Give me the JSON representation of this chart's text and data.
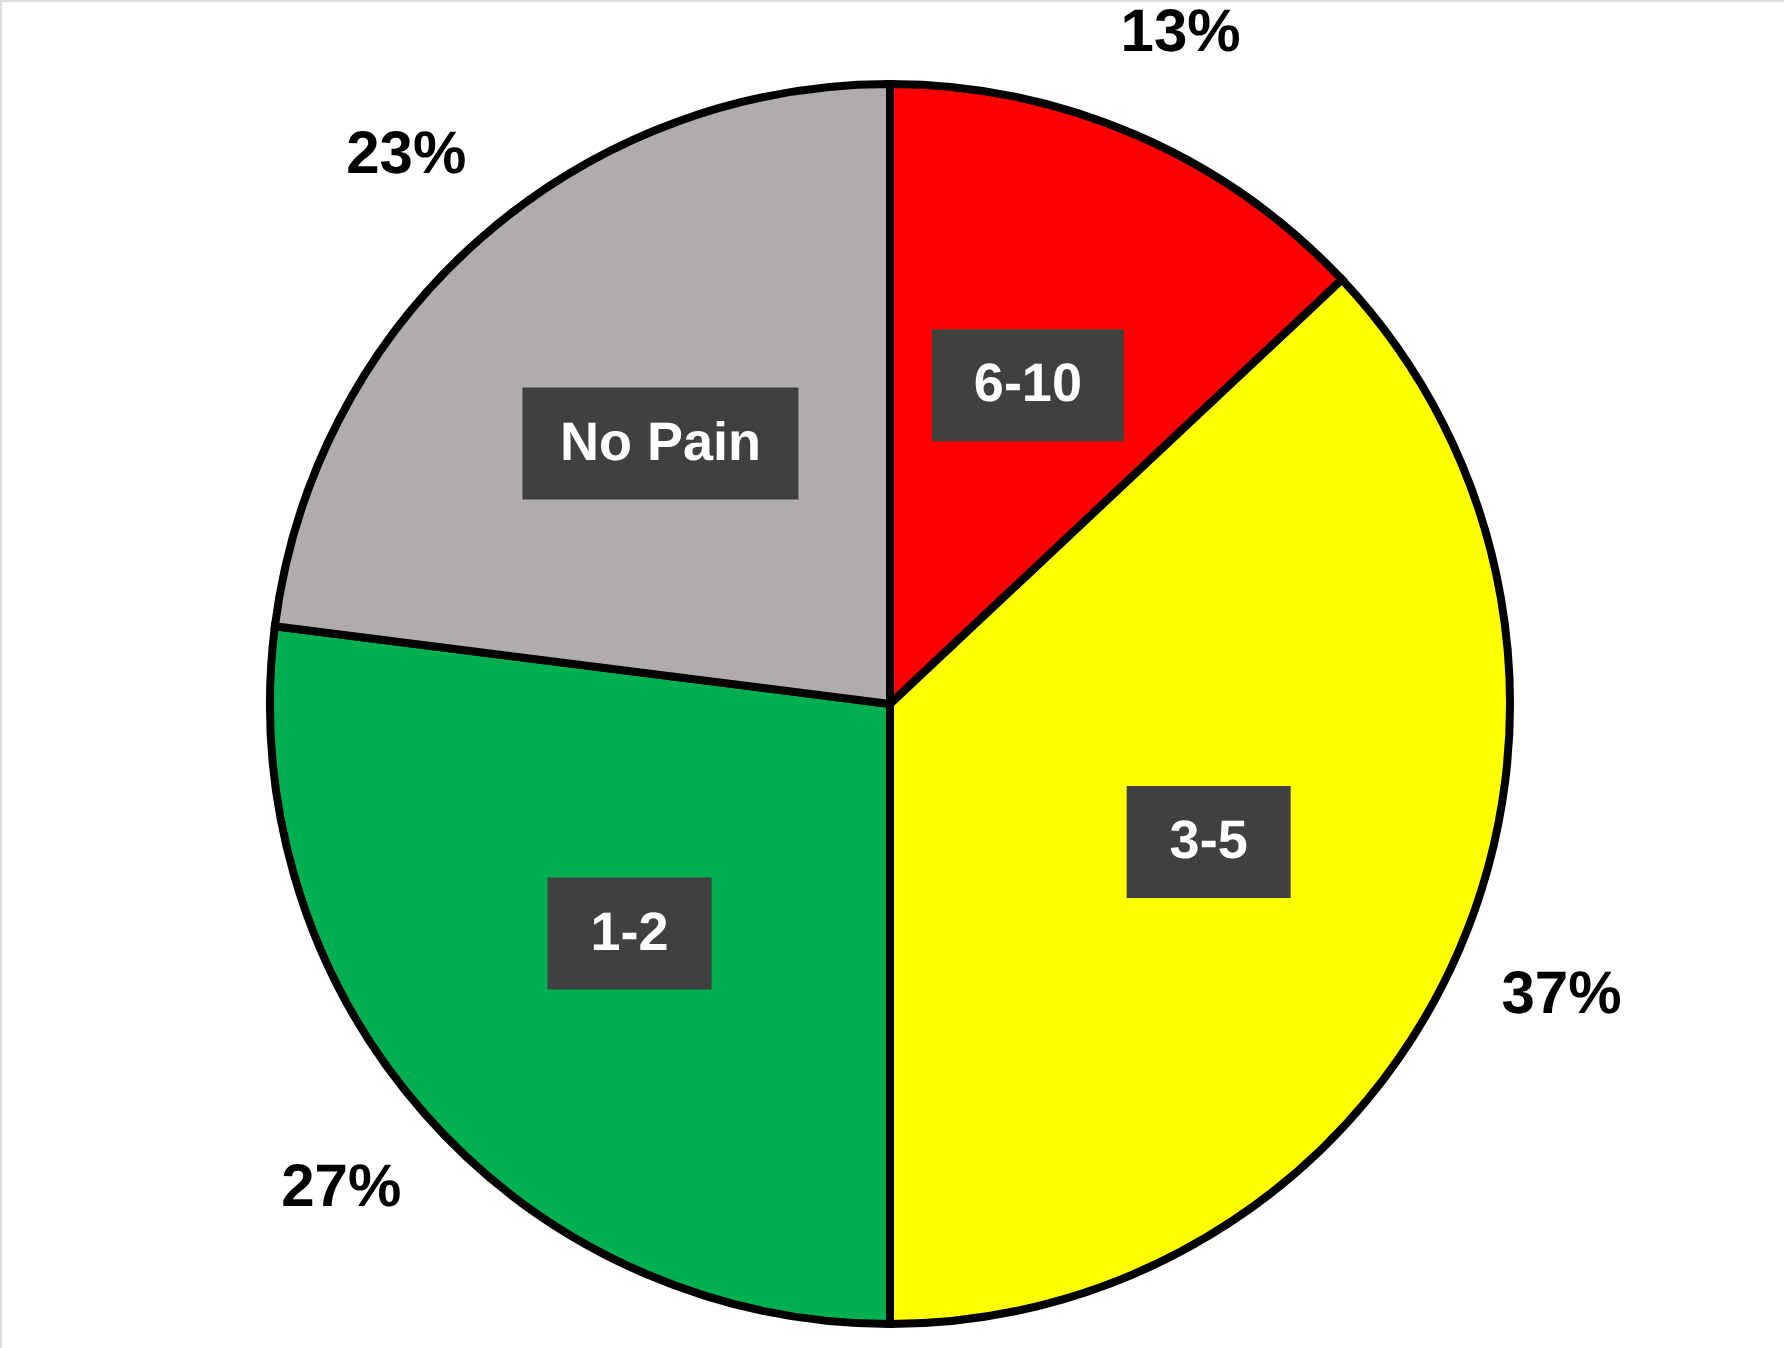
{
  "chart_data": {
    "type": "pie",
    "categories": [
      "6-10",
      "3-5",
      "1-2",
      "No Pain"
    ],
    "values": [
      13,
      37,
      27,
      23
    ],
    "colors": [
      "#ff0000",
      "#ffff00",
      "#00b050",
      "#b0acac"
    ],
    "value_labels": [
      "13%",
      "37%",
      "27%",
      "23%"
    ]
  }
}
